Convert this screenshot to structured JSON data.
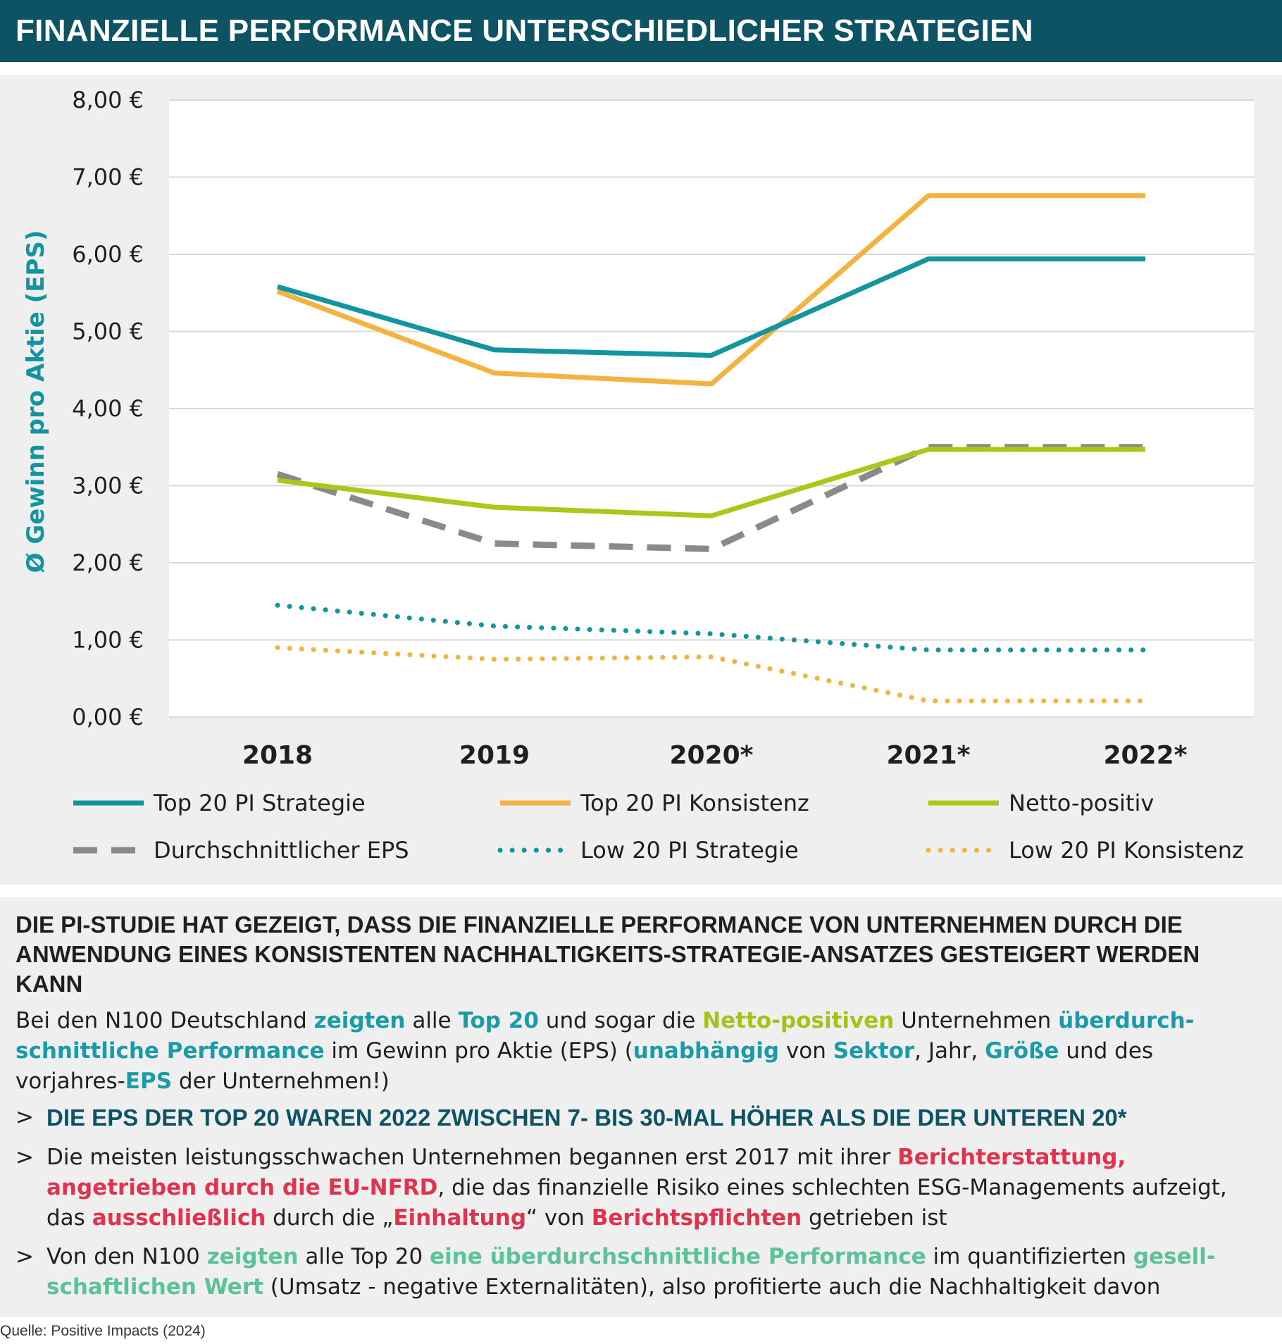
{
  "title": "FINANZIELLE PERFORMANCE UNTERSCHIEDLICHER STRATEGIEN",
  "colors": {
    "header_bg": "#0d5363",
    "panel_bg": "#efefef",
    "teal": "#12959f",
    "orange": "#f2b340",
    "green": "#abc81a",
    "gray": "#8a8a8a"
  },
  "chart_data": {
    "type": "line",
    "categories": [
      "2018",
      "2019",
      "2020*",
      "2021*",
      "2022*"
    ],
    "ylabel": "Ø Gewinn pro Aktie (EPS)",
    "ylim": [
      0,
      8
    ],
    "yticks": [
      "0,00 €",
      "1,00 €",
      "2,00 €",
      "3,00 €",
      "4,00 €",
      "5,00 €",
      "6,00 €",
      "7,00 €",
      "8,00 €"
    ],
    "grid": true,
    "legend_position": "bottom",
    "series": [
      {
        "name": "Top 20 PI Strategie",
        "style": "solid",
        "color": "#12959f",
        "values": [
          5.58,
          4.76,
          4.69,
          5.94,
          5.94
        ]
      },
      {
        "name": "Top 20 PI Konsistenz",
        "style": "solid",
        "color": "#f2b340",
        "values": [
          5.52,
          4.46,
          4.32,
          6.76,
          6.76
        ]
      },
      {
        "name": "Netto-positiv",
        "style": "solid",
        "color": "#abc81a",
        "values": [
          3.07,
          2.72,
          2.61,
          3.47,
          3.47
        ]
      },
      {
        "name": "Durchschnittlicher EPS",
        "style": "dashed",
        "color": "#8a8a8a",
        "values": [
          3.15,
          2.25,
          2.18,
          3.5,
          3.5
        ]
      },
      {
        "name": "Low 20 PI Strategie",
        "style": "dotted",
        "color": "#12959f",
        "values": [
          1.45,
          1.18,
          1.08,
          0.87,
          0.87
        ]
      },
      {
        "name": "Low 20 PI Konsistenz",
        "style": "dotted",
        "color": "#f2b340",
        "values": [
          0.9,
          0.75,
          0.78,
          0.21,
          0.21
        ]
      }
    ]
  },
  "panel": {
    "heading": "DIE PI-STUDIE HAT GEZEIGT, DASS DIE FINANZIELLE PERFORMANCE VON UNTERNEHMEN DURCH DIE ANWENDUNG EINES KONSISTENTEN NACHHALTIGKEITS-STRATEGIE-ANSATZES GESTEIGERT WERDEN KANN",
    "intro": {
      "t1": "Bei den N100 Deutschland ",
      "h1": "zeigten",
      "t2": " alle ",
      "h2": "Top 20",
      "t3": " und sogar die ",
      "h3": "Netto-positiven",
      "t4": " Unternehmen ",
      "h4": "überdurch-schnittliche Performance",
      "t5": " im Gewinn pro Aktie (EPS) (",
      "h5": "unabhängig",
      "t6": " von ",
      "h6": "Sektor",
      "t7": ", Jahr, ",
      "h7": "Größe",
      "t8": " und des vorjahres-",
      "h8": "EPS",
      "t9": " der Unternehmen!)"
    },
    "bullet_marker": ">",
    "bullet1": "DIE EPS DER TOP 20 WAREN 2022 ZWISCHEN 7- BIS 30-MAL HÖHER ALS DIE DER UNTEREN 20*",
    "bullet2": {
      "t1": "Die meisten leistungsschwachen Unternehmen begannen erst 2017 mit ihrer ",
      "h1": "Berichterstattung, angetrieben durch die EU-NFRD",
      "t2": ", die das finanzielle Risiko eines schlechten ESG-Managements aufzeigt, das ",
      "h2": "ausschließlich",
      "t3": " durch die „",
      "h3": "Einhaltung",
      "t4": "“ von ",
      "h4": "Berichtspflichten",
      "t5": " getrieben ist"
    },
    "bullet3": {
      "t1": "Von den N100 ",
      "h1": "zeigten",
      "t2": " alle Top 20 ",
      "h2": "eine überdurchschnittliche Performance",
      "t3": " im quantifizierten ",
      "h3": "gesell-schaftlichen Wert",
      "t4": " (Umsatz - negative Externalitäten), also profitierte auch die Nachhaltigkeit davon"
    }
  },
  "source": "Quelle: Positive Impacts (2024)"
}
